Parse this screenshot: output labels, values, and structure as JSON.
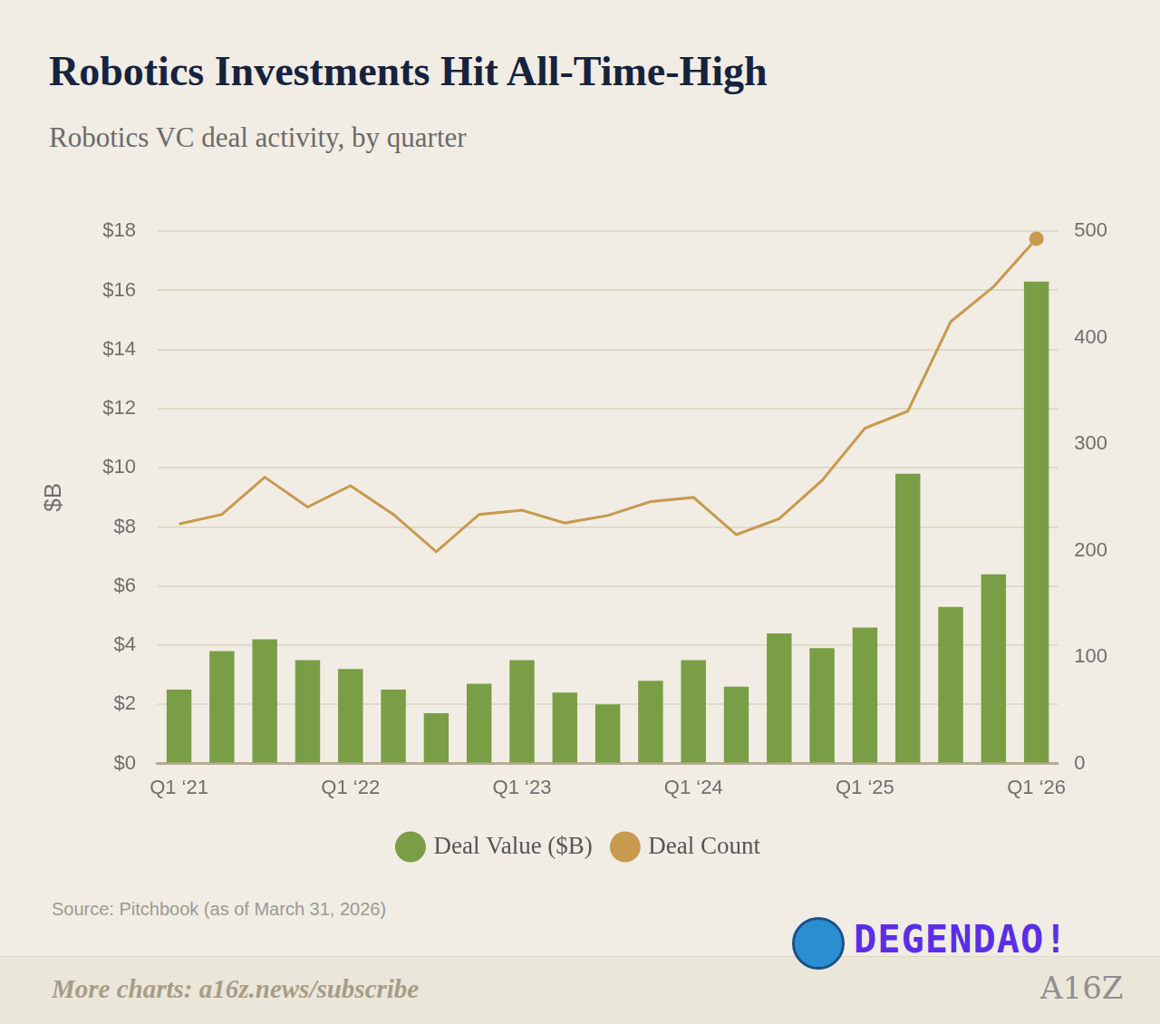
{
  "chart_data": {
    "type": "bar",
    "title": "Robotics Investments Hit All-Time-High",
    "subtitle": "Robotics VC deal activity, by quarter",
    "y_label": "$B",
    "source": "Source: Pitchbook (as of March 31, 2026)",
    "footer": "More charts: a16z.news/subscribe",
    "watermark": "DEGENDAO!",
    "brand": "A16Z",
    "categories": [
      "Q1 ‘21",
      null,
      null,
      null,
      "Q1 ‘22",
      null,
      null,
      null,
      "Q1 ‘23",
      null,
      null,
      null,
      "Q1 ‘24",
      null,
      null,
      null,
      "Q1 ‘25",
      null,
      null,
      null,
      "Q1 ‘26"
    ],
    "series": [
      {
        "name": "Deal Value ($B)",
        "type": "bar",
        "color": "#7a9e45",
        "values": [
          2.5,
          3.8,
          4.2,
          3.5,
          3.2,
          2.5,
          1.7,
          2.7,
          3.5,
          2.4,
          2.0,
          2.8,
          3.5,
          2.6,
          4.4,
          3.9,
          4.6,
          9.8,
          5.3,
          6.4,
          16.3
        ]
      },
      {
        "name": "Deal Count",
        "type": "line",
        "color": "#c79a4f",
        "axis": "y2",
        "values": [
          225,
          234,
          269,
          241,
          261,
          234,
          199,
          234,
          238,
          226,
          233,
          246,
          250,
          215,
          230,
          266,
          315,
          331,
          415,
          448,
          493
        ]
      }
    ],
    "ylim": [
      0,
      18
    ],
    "yticks": [
      {
        "value": 0,
        "label": "$0"
      },
      {
        "value": 2,
        "label": "$2"
      },
      {
        "value": 4,
        "label": "$4"
      },
      {
        "value": 6,
        "label": "$6"
      },
      {
        "value": 8,
        "label": "$8"
      },
      {
        "value": 10,
        "label": "$10"
      },
      {
        "value": 12,
        "label": "$12"
      },
      {
        "value": 14,
        "label": "$14"
      },
      {
        "value": 16,
        "label": "$16"
      },
      {
        "value": 18,
        "label": "$18"
      }
    ],
    "y2lim": [
      0,
      500
    ],
    "y2ticks": [
      0,
      100,
      200,
      300,
      400,
      500
    ],
    "grid": true,
    "legend": "bottom"
  }
}
